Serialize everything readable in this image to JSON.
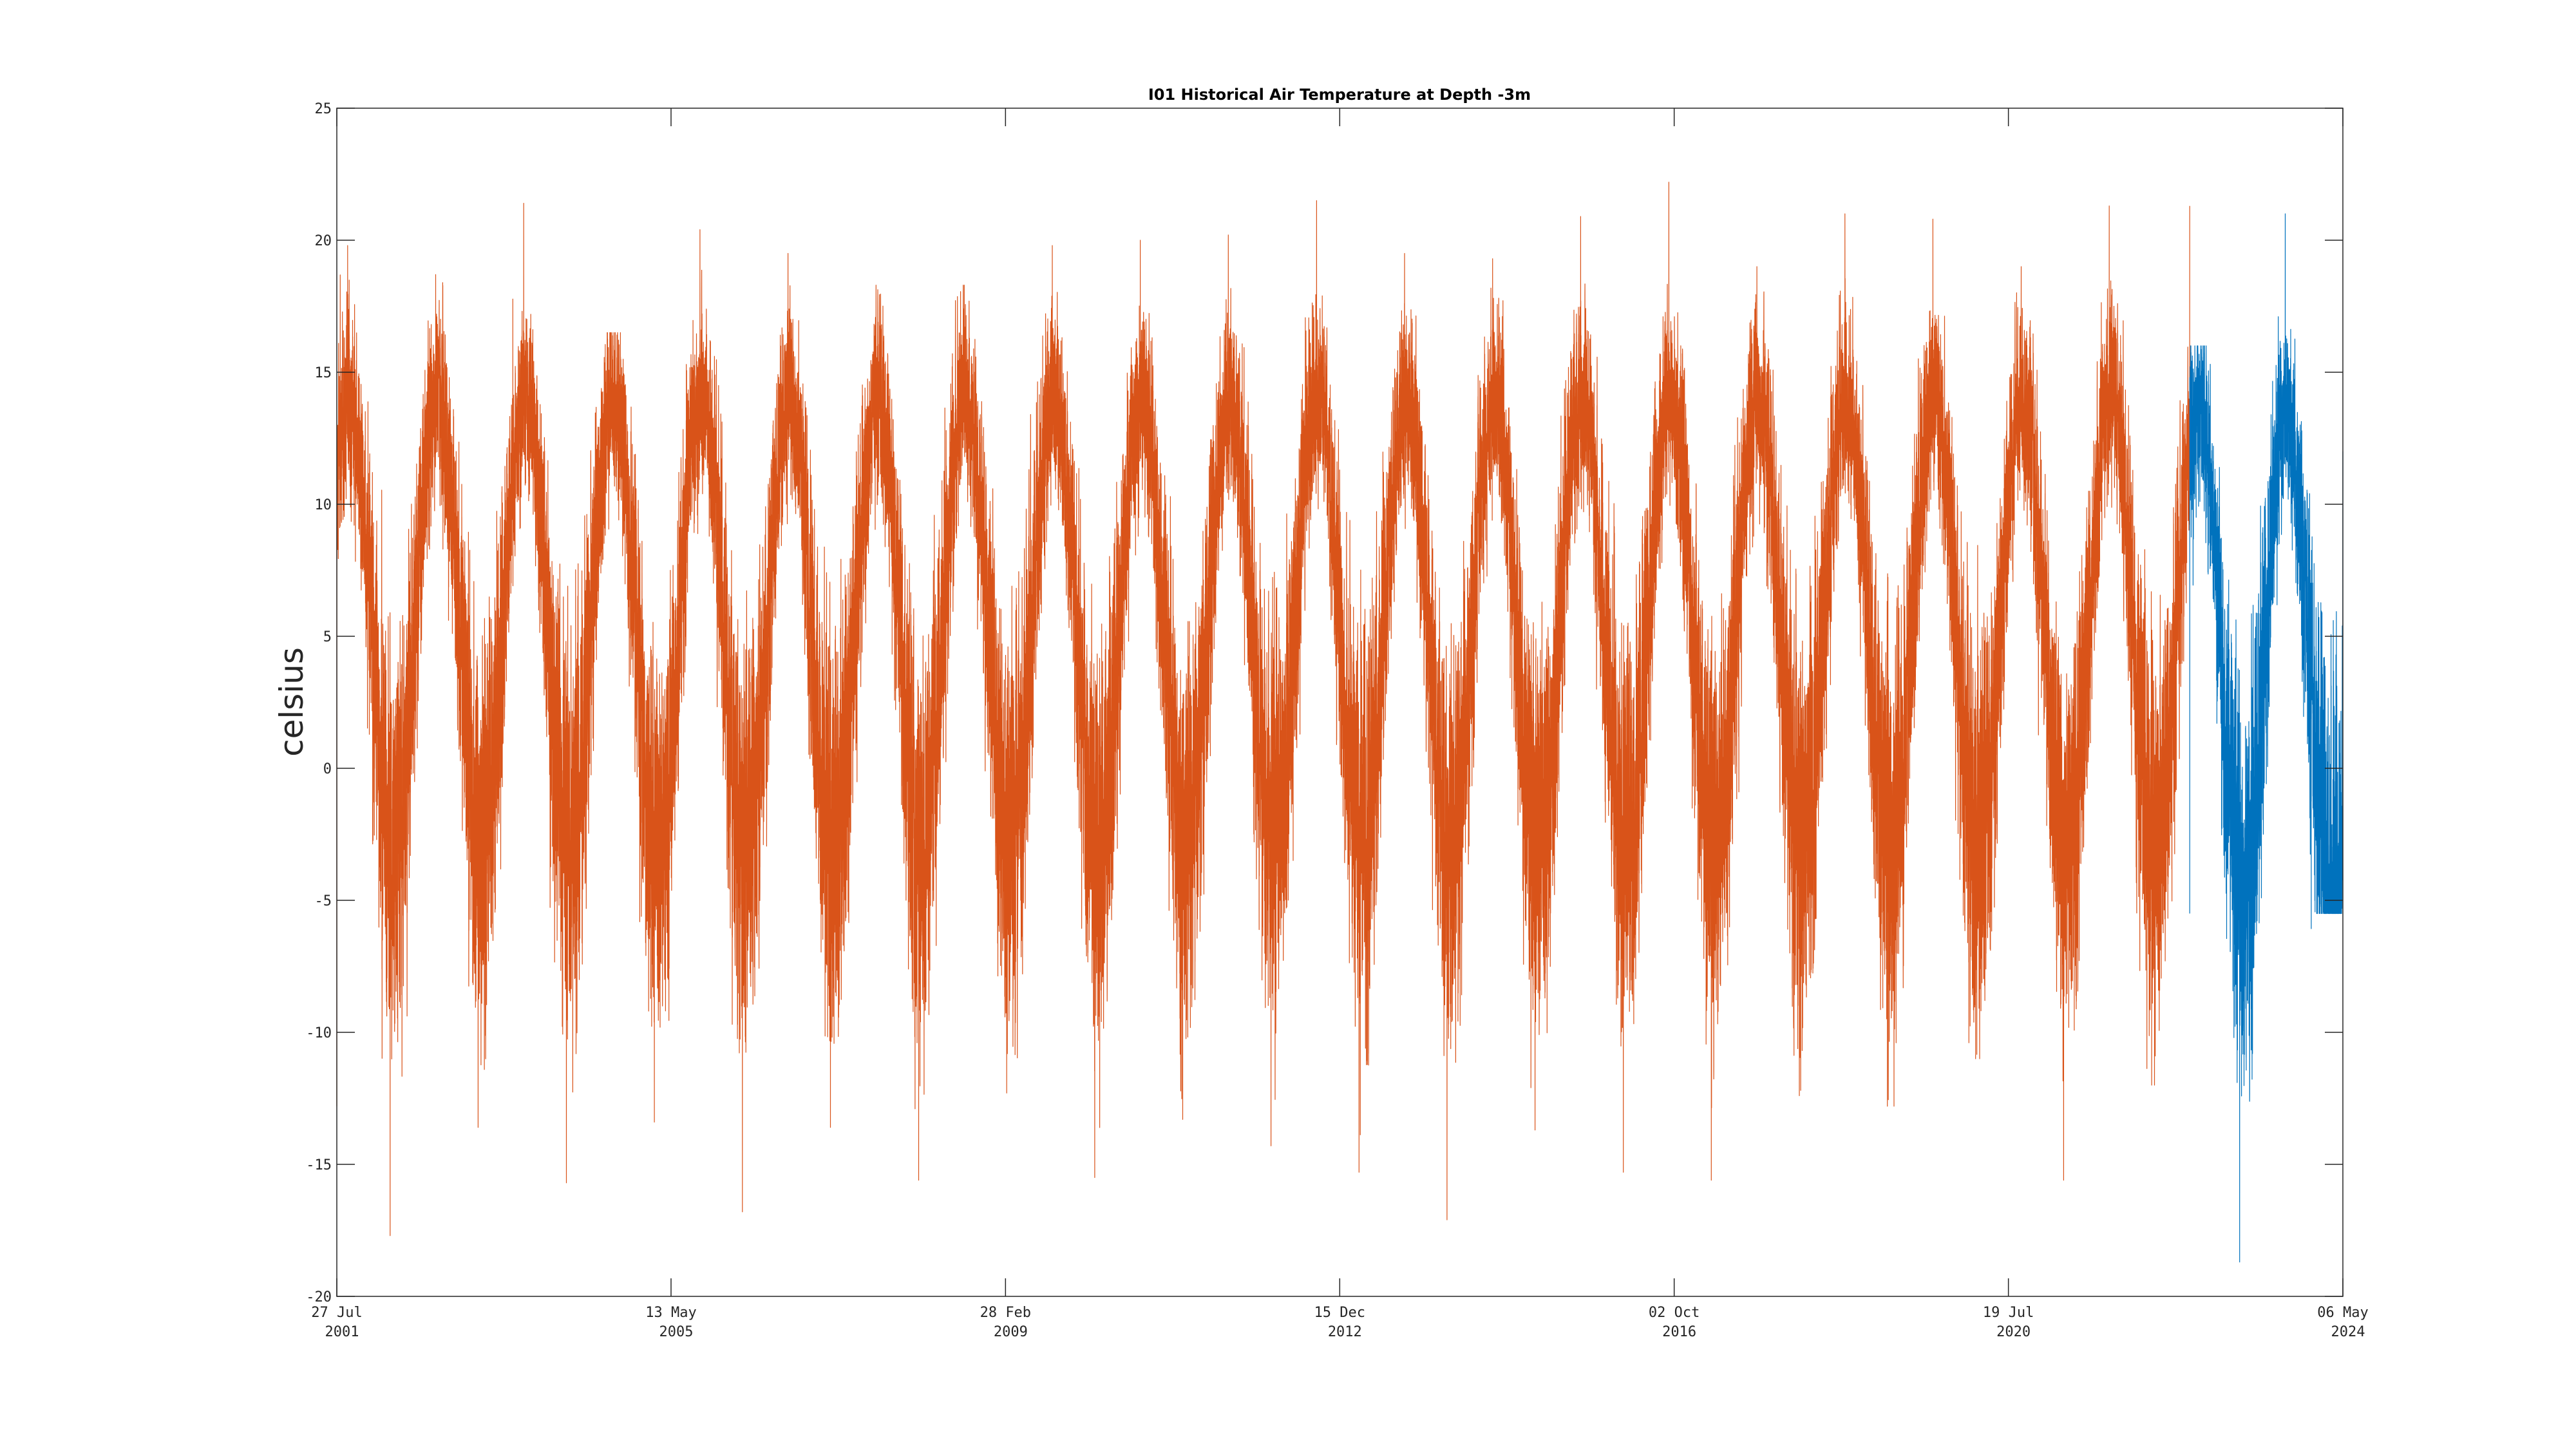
{
  "chart_data": {
    "type": "line",
    "title": "I01 Historical Air Temperature at Depth -3m",
    "xlabel": "",
    "ylabel": "celsius",
    "ylim": [
      -20,
      25
    ],
    "xlim": [
      "2001-07-27",
      "2024-05-06"
    ],
    "yticks": [
      -20,
      -15,
      -10,
      -5,
      0,
      5,
      10,
      15,
      20,
      25
    ],
    "xticks": [
      {
        "date": "2001-07-27",
        "line1": "27 Jul",
        "line2": "2001"
      },
      {
        "date": "2005-05-13",
        "line1": "13 May",
        "line2": "2005"
      },
      {
        "date": "2009-02-28",
        "line1": "28 Feb",
        "line2": "2009"
      },
      {
        "date": "2012-12-15",
        "line1": "15 Dec",
        "line2": "2012"
      },
      {
        "date": "2016-10-02",
        "line1": "02 Oct",
        "line2": "2016"
      },
      {
        "date": "2020-07-19",
        "line1": "19 Jul",
        "line2": "2020"
      },
      {
        "date": "2024-05-06",
        "line1": "06 May",
        "line2": "2024"
      }
    ],
    "grid": false,
    "legend": "none",
    "series": [
      {
        "color": "#D95319",
        "start": "2001-07-27",
        "end": "2022-08-10",
        "seasonal_mean": 5.5,
        "seasonal_amplitude": 8.5,
        "peak_month": "September",
        "yearly_extremes": [
          {
            "year": 2001,
            "max": 19.8,
            "min": -12.8
          },
          {
            "year": 2002,
            "max": 18.7,
            "min": -17.7
          },
          {
            "year": 2003,
            "max": 21.4,
            "min": -13.6
          },
          {
            "year": 2004,
            "max": 16.5,
            "min": -15.7
          },
          {
            "year": 2005,
            "max": 20.4,
            "min": -13.4
          },
          {
            "year": 2006,
            "max": 19.5,
            "min": -16.8
          },
          {
            "year": 2007,
            "max": 18.3,
            "min": -13.6
          },
          {
            "year": 2008,
            "max": 18.3,
            "min": -15.6
          },
          {
            "year": 2009,
            "max": 19.8,
            "min": -12.3
          },
          {
            "year": 2010,
            "max": 20.0,
            "min": -15.5
          },
          {
            "year": 2011,
            "max": 20.2,
            "min": -13.3
          },
          {
            "year": 2012,
            "max": 21.5,
            "min": -14.3
          },
          {
            "year": 2013,
            "max": 19.5,
            "min": -15.3
          },
          {
            "year": 2014,
            "max": 19.3,
            "min": -17.1
          },
          {
            "year": 2015,
            "max": 20.9,
            "min": -13.7
          },
          {
            "year": 2016,
            "max": 22.2,
            "min": -15.3
          },
          {
            "year": 2017,
            "max": 19.0,
            "min": -15.6
          },
          {
            "year": 2018,
            "max": 21.0,
            "min": -12.4
          },
          {
            "year": 2019,
            "max": 20.8,
            "min": -12.8
          },
          {
            "year": 2020,
            "max": 19.0,
            "min": -11.0
          },
          {
            "year": 2021,
            "max": 21.3,
            "min": -15.6
          },
          {
            "year": 2022,
            "max": 21.3,
            "min": -12.0
          }
        ]
      },
      {
        "color": "#0072BD",
        "start": "2022-08-10",
        "end": "2024-05-06",
        "seasonal_mean": 4.5,
        "seasonal_amplitude": 9.0,
        "peak_month": "September",
        "yearly_extremes": [
          {
            "year": 2022,
            "max": 16.0,
            "min": -5.5
          },
          {
            "year": 2023,
            "max": 21.0,
            "min": -18.7
          },
          {
            "year": 2024,
            "max": 12.0,
            "min": -5.5
          }
        ]
      }
    ]
  }
}
